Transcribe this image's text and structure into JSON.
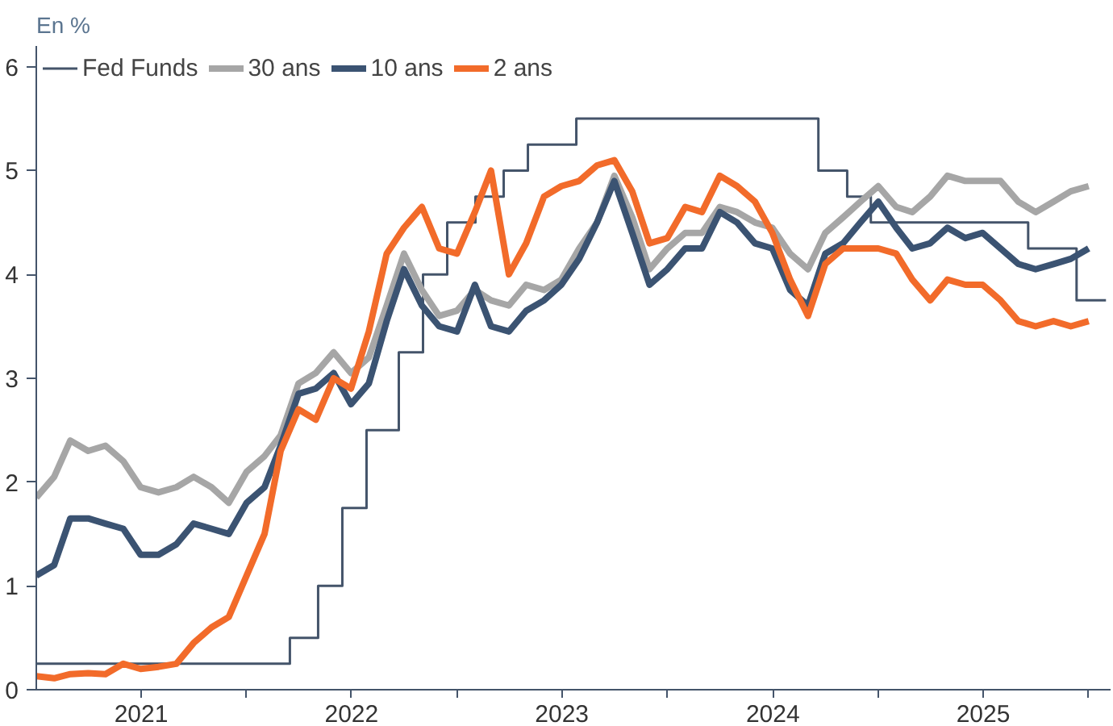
{
  "chart_data": {
    "type": "line",
    "ylabel": "En %",
    "x": [
      "2021-01-01",
      "2021-02-01",
      "2021-03-01",
      "2021-04-01",
      "2021-05-01",
      "2021-06-01",
      "2021-07-01",
      "2021-08-01",
      "2021-09-01",
      "2021-10-01",
      "2021-11-01",
      "2021-12-01",
      "2022-01-01",
      "2022-02-01",
      "2022-03-01",
      "2022-04-01",
      "2022-05-01",
      "2022-06-01",
      "2022-07-01",
      "2022-08-01",
      "2022-09-01",
      "2022-10-01",
      "2022-11-01",
      "2022-12-01",
      "2023-01-01",
      "2023-02-01",
      "2023-03-01",
      "2023-04-01",
      "2023-05-01",
      "2023-06-01",
      "2023-07-01",
      "2023-08-01",
      "2023-09-01",
      "2023-10-01",
      "2023-11-01",
      "2023-12-01",
      "2024-01-01",
      "2024-02-01",
      "2024-03-01",
      "2024-04-01",
      "2024-05-01",
      "2024-06-01",
      "2024-07-01",
      "2024-08-01",
      "2024-09-01",
      "2024-10-01",
      "2024-11-01",
      "2024-12-01",
      "2025-01-01",
      "2025-02-01",
      "2025-03-01",
      "2025-04-01",
      "2025-05-01",
      "2025-06-01",
      "2025-07-01",
      "2025-08-01",
      "2025-09-01",
      "2025-10-01",
      "2025-11-01",
      "2025-12-01",
      "2026-01-01"
    ],
    "series": [
      {
        "name": "Fed Funds",
        "type": "step",
        "color": "#44546a",
        "x": [
          "2021-01-01",
          "2022-03-17",
          "2022-05-05",
          "2022-06-16",
          "2022-07-28",
          "2022-09-22",
          "2022-11-03",
          "2022-12-15",
          "2023-02-02",
          "2023-03-23",
          "2023-05-04",
          "2023-07-27",
          "2024-09-19",
          "2024-11-08",
          "2024-12-19",
          "2025-09-18",
          "2025-12-11",
          "2026-01-31"
        ],
        "values": [
          0.25,
          0.5,
          1.0,
          1.75,
          2.5,
          3.25,
          4.0,
          4.5,
          4.75,
          5.0,
          5.25,
          5.5,
          5.0,
          4.75,
          4.5,
          4.25,
          3.75,
          3.75
        ]
      },
      {
        "name": "30 ans",
        "color": "#a6a6a6",
        "values": [
          1.85,
          2.05,
          2.4,
          2.3,
          2.35,
          2.2,
          1.95,
          1.9,
          1.95,
          2.05,
          1.95,
          1.8,
          2.1,
          2.25,
          2.45,
          2.95,
          3.05,
          3.25,
          3.05,
          3.2,
          3.7,
          4.2,
          3.85,
          3.6,
          3.65,
          3.85,
          3.75,
          3.7,
          3.9,
          3.85,
          3.95,
          4.25,
          4.5,
          4.95,
          4.55,
          4.05,
          4.25,
          4.4,
          4.4,
          4.65,
          4.6,
          4.5,
          4.45,
          4.2,
          4.05,
          4.4,
          4.55,
          4.7,
          4.85,
          4.65,
          4.6,
          4.75,
          4.95,
          4.9,
          4.9,
          4.9,
          4.7,
          4.6,
          4.7,
          4.8,
          4.85
        ]
      },
      {
        "name": "10 ans",
        "color": "#3b5372",
        "values": [
          1.1,
          1.2,
          1.65,
          1.65,
          1.6,
          1.55,
          1.3,
          1.3,
          1.4,
          1.6,
          1.55,
          1.5,
          1.8,
          1.95,
          2.35,
          2.85,
          2.9,
          3.05,
          2.75,
          2.95,
          3.55,
          4.05,
          3.7,
          3.5,
          3.45,
          3.9,
          3.5,
          3.45,
          3.65,
          3.75,
          3.9,
          4.15,
          4.5,
          4.9,
          4.4,
          3.9,
          4.05,
          4.25,
          4.25,
          4.6,
          4.5,
          4.3,
          4.25,
          3.85,
          3.7,
          4.2,
          4.3,
          4.5,
          4.7,
          4.45,
          4.25,
          4.3,
          4.45,
          4.35,
          4.4,
          4.25,
          4.1,
          4.05,
          4.1,
          4.15,
          4.25
        ]
      },
      {
        "name": "2 ans",
        "color": "#f26b2a",
        "values": [
          0.13,
          0.11,
          0.15,
          0.16,
          0.15,
          0.25,
          0.2,
          0.22,
          0.25,
          0.45,
          0.6,
          0.7,
          1.1,
          1.5,
          2.3,
          2.7,
          2.6,
          3.0,
          2.9,
          3.45,
          4.2,
          4.45,
          4.65,
          4.25,
          4.2,
          4.6,
          5.0,
          4.0,
          4.3,
          4.75,
          4.85,
          4.9,
          5.05,
          5.1,
          4.8,
          4.3,
          4.35,
          4.65,
          4.6,
          4.95,
          4.85,
          4.7,
          4.4,
          3.95,
          3.6,
          4.1,
          4.25,
          4.25,
          4.25,
          4.2,
          3.95,
          3.75,
          3.95,
          3.9,
          3.9,
          3.75,
          3.55,
          3.5,
          3.55,
          3.5,
          3.55
        ]
      }
    ],
    "xlim": [
      "2021-01-01",
      "2026-02-08"
    ],
    "xticks": [
      {
        "value": "2021-07-02",
        "label": "2021"
      },
      {
        "value": "2022-01-01",
        "label": null
      },
      {
        "value": "2022-07-02",
        "label": "2022"
      },
      {
        "value": "2023-01-01",
        "label": null
      },
      {
        "value": "2023-07-02",
        "label": "2023"
      },
      {
        "value": "2024-01-01",
        "label": null
      },
      {
        "value": "2024-07-02",
        "label": "2024"
      },
      {
        "value": "2025-01-01",
        "label": null
      },
      {
        "value": "2025-07-02",
        "label": "2025"
      },
      {
        "value": "2026-01-01",
        "label": null
      }
    ],
    "ylim": [
      0,
      6.2
    ],
    "yticks": [
      0,
      1,
      2,
      3,
      4,
      5,
      6
    ],
    "legend": "top left",
    "grid": false
  }
}
